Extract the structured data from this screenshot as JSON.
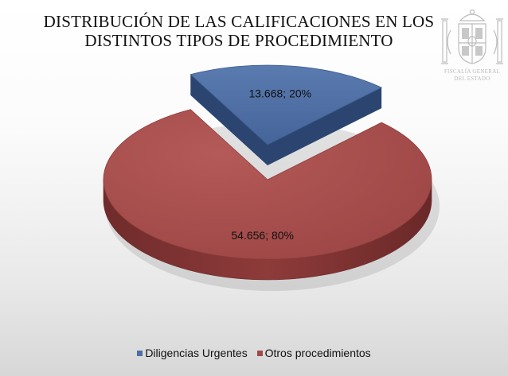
{
  "title_lines": [
    "DISTRIBUCIÓN DE LAS CALIFICACIONES EN LOS",
    "DISTINTOS TIPOS DE PROCEDIMIENTO"
  ],
  "seal": {
    "caption_lines": [
      "FISCALÍA GENERAL",
      "DEL ESTADO"
    ],
    "color": "#bdbdbd"
  },
  "chart_data": {
    "type": "pie",
    "title": "DISTRIBUCIÓN DE LAS CALIFICACIONES EN LOS DISTINTOS TIPOS DE PROCEDIMIENTO",
    "style": "3d",
    "slices": [
      {
        "name": "Diligencias Urgentes",
        "value": 13668,
        "percent": 20,
        "label": "13.668; 20%",
        "color": "#4f6fa3",
        "exploded": true
      },
      {
        "name": "Otros procedimientos",
        "value": 54656,
        "percent": 80,
        "label": "54.656; 80%",
        "color": "#a04a49",
        "exploded": false
      }
    ],
    "legend_position": "bottom"
  }
}
